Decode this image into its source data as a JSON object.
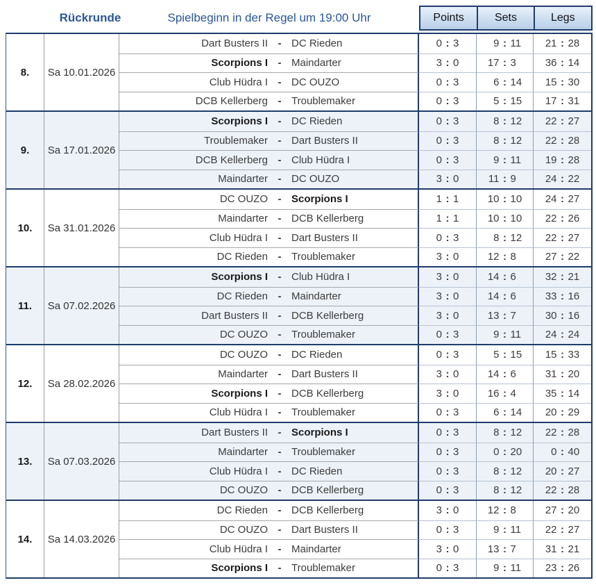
{
  "header": {
    "round_label": "Rückrunde",
    "subtitle": "Spielbeginn in der Regel um 19:00 Uhr",
    "columns": [
      "Points",
      "Sets",
      "Legs"
    ]
  },
  "separators": {
    "team": "-",
    "score": ":"
  },
  "colors": {
    "border_navy": "#1f3c6d",
    "title_blue": "#2a5699",
    "tint_row": "#edf2f9",
    "header_gradient_top": "#eaf2fb",
    "header_gradient_bottom": "#b9cfe8"
  },
  "matchdays": [
    {
      "number": "8.",
      "date": "Sa 10.01.2026",
      "matches": [
        {
          "home": "Dart Busters II",
          "away": "DC Rieden",
          "bold": null,
          "points": [
            "0",
            "3"
          ],
          "sets": [
            "9",
            "11"
          ],
          "legs": [
            "21",
            "28"
          ]
        },
        {
          "home": "Scorpions I",
          "away": "Maindarter",
          "bold": "home",
          "points": [
            "3",
            "0"
          ],
          "sets": [
            "17",
            "3"
          ],
          "legs": [
            "36",
            "14"
          ]
        },
        {
          "home": "Club Hüdra I",
          "away": "DC OUZO",
          "bold": null,
          "points": [
            "0",
            "3"
          ],
          "sets": [
            "6",
            "14"
          ],
          "legs": [
            "15",
            "30"
          ]
        },
        {
          "home": "DCB Kellerberg",
          "away": "Troublemaker",
          "bold": null,
          "points": [
            "0",
            "3"
          ],
          "sets": [
            "5",
            "15"
          ],
          "legs": [
            "17",
            "31"
          ]
        }
      ]
    },
    {
      "number": "9.",
      "date": "Sa 17.01.2026",
      "matches": [
        {
          "home": "Scorpions I",
          "away": "DC Rieden",
          "bold": "home",
          "points": [
            "0",
            "3"
          ],
          "sets": [
            "8",
            "12"
          ],
          "legs": [
            "22",
            "27"
          ]
        },
        {
          "home": "Troublemaker",
          "away": "Dart Busters II",
          "bold": null,
          "points": [
            "0",
            "3"
          ],
          "sets": [
            "8",
            "12"
          ],
          "legs": [
            "22",
            "28"
          ]
        },
        {
          "home": "DCB Kellerberg",
          "away": "Club Hüdra I",
          "bold": null,
          "points": [
            "0",
            "3"
          ],
          "sets": [
            "9",
            "11"
          ],
          "legs": [
            "19",
            "28"
          ]
        },
        {
          "home": "Maindarter",
          "away": "DC OUZO",
          "bold": null,
          "points": [
            "3",
            "0"
          ],
          "sets": [
            "11",
            "9"
          ],
          "legs": [
            "24",
            "22"
          ]
        }
      ]
    },
    {
      "number": "10.",
      "date": "Sa 31.01.2026",
      "matches": [
        {
          "home": "DC OUZO",
          "away": "Scorpions I",
          "bold": "away",
          "points": [
            "1",
            "1"
          ],
          "sets": [
            "10",
            "10"
          ],
          "legs": [
            "24",
            "27"
          ]
        },
        {
          "home": "Maindarter",
          "away": "DCB Kellerberg",
          "bold": null,
          "points": [
            "1",
            "1"
          ],
          "sets": [
            "10",
            "10"
          ],
          "legs": [
            "22",
            "26"
          ]
        },
        {
          "home": "Club Hüdra I",
          "away": "Dart Busters II",
          "bold": null,
          "points": [
            "0",
            "3"
          ],
          "sets": [
            "8",
            "12"
          ],
          "legs": [
            "22",
            "27"
          ]
        },
        {
          "home": "DC Rieden",
          "away": "Troublemaker",
          "bold": null,
          "points": [
            "3",
            "0"
          ],
          "sets": [
            "12",
            "8"
          ],
          "legs": [
            "27",
            "22"
          ]
        }
      ]
    },
    {
      "number": "11.",
      "date": "Sa 07.02.2026",
      "matches": [
        {
          "home": "Scorpions I",
          "away": "Club Hüdra I",
          "bold": "home",
          "points": [
            "3",
            "0"
          ],
          "sets": [
            "14",
            "6"
          ],
          "legs": [
            "32",
            "21"
          ]
        },
        {
          "home": "DC Rieden",
          "away": "Maindarter",
          "bold": null,
          "points": [
            "3",
            "0"
          ],
          "sets": [
            "14",
            "6"
          ],
          "legs": [
            "33",
            "16"
          ]
        },
        {
          "home": "Dart Busters II",
          "away": "DCB Kellerberg",
          "bold": null,
          "points": [
            "3",
            "0"
          ],
          "sets": [
            "13",
            "7"
          ],
          "legs": [
            "30",
            "16"
          ]
        },
        {
          "home": "DC OUZO",
          "away": "Troublemaker",
          "bold": null,
          "points": [
            "0",
            "3"
          ],
          "sets": [
            "9",
            "11"
          ],
          "legs": [
            "24",
            "24"
          ]
        }
      ]
    },
    {
      "number": "12.",
      "date": "Sa 28.02.2026",
      "matches": [
        {
          "home": "DC OUZO",
          "away": "DC Rieden",
          "bold": null,
          "points": [
            "0",
            "3"
          ],
          "sets": [
            "5",
            "15"
          ],
          "legs": [
            "15",
            "33"
          ]
        },
        {
          "home": "Maindarter",
          "away": "Dart Busters II",
          "bold": null,
          "points": [
            "3",
            "0"
          ],
          "sets": [
            "14",
            "6"
          ],
          "legs": [
            "31",
            "20"
          ]
        },
        {
          "home": "Scorpions I",
          "away": "DCB Kellerberg",
          "bold": "home",
          "points": [
            "3",
            "0"
          ],
          "sets": [
            "16",
            "4"
          ],
          "legs": [
            "35",
            "14"
          ]
        },
        {
          "home": "Club Hüdra I",
          "away": "Troublemaker",
          "bold": null,
          "points": [
            "0",
            "3"
          ],
          "sets": [
            "6",
            "14"
          ],
          "legs": [
            "20",
            "29"
          ]
        }
      ]
    },
    {
      "number": "13.",
      "date": "Sa 07.03.2026",
      "matches": [
        {
          "home": "Dart Busters II",
          "away": "Scorpions I",
          "bold": "away",
          "points": [
            "0",
            "3"
          ],
          "sets": [
            "8",
            "12"
          ],
          "legs": [
            "22",
            "28"
          ]
        },
        {
          "home": "Maindarter",
          "away": "Troublemaker",
          "bold": null,
          "points": [
            "0",
            "3"
          ],
          "sets": [
            "0",
            "20"
          ],
          "legs": [
            "0",
            "40"
          ]
        },
        {
          "home": "Club Hüdra I",
          "away": "DC Rieden",
          "bold": null,
          "points": [
            "0",
            "3"
          ],
          "sets": [
            "8",
            "12"
          ],
          "legs": [
            "20",
            "27"
          ]
        },
        {
          "home": "DC OUZO",
          "away": "DCB Kellerberg",
          "bold": null,
          "points": [
            "0",
            "3"
          ],
          "sets": [
            "8",
            "12"
          ],
          "legs": [
            "22",
            "28"
          ]
        }
      ]
    },
    {
      "number": "14.",
      "date": "Sa 14.03.2026",
      "matches": [
        {
          "home": "DC Rieden",
          "away": "DCB Kellerberg",
          "bold": null,
          "points": [
            "3",
            "0"
          ],
          "sets": [
            "12",
            "8"
          ],
          "legs": [
            "27",
            "20"
          ]
        },
        {
          "home": "DC OUZO",
          "away": "Dart Busters II",
          "bold": null,
          "points": [
            "0",
            "3"
          ],
          "sets": [
            "9",
            "11"
          ],
          "legs": [
            "22",
            "27"
          ]
        },
        {
          "home": "Club Hüdra I",
          "away": "Maindarter",
          "bold": null,
          "points": [
            "3",
            "0"
          ],
          "sets": [
            "13",
            "7"
          ],
          "legs": [
            "31",
            "21"
          ]
        },
        {
          "home": "Scorpions I",
          "away": "Troublemaker",
          "bold": "home",
          "points": [
            "0",
            "3"
          ],
          "sets": [
            "9",
            "11"
          ],
          "legs": [
            "23",
            "26"
          ]
        }
      ]
    }
  ]
}
